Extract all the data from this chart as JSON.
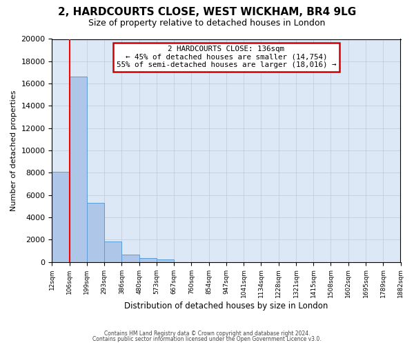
{
  "title": "2, HARDCOURTS CLOSE, WEST WICKHAM, BR4 9LG",
  "subtitle": "Size of property relative to detached houses in London",
  "xlabel": "Distribution of detached houses by size in London",
  "ylabel": "Number of detached properties",
  "bin_labels": [
    "12sqm",
    "106sqm",
    "199sqm",
    "293sqm",
    "386sqm",
    "480sqm",
    "573sqm",
    "667sqm",
    "760sqm",
    "854sqm",
    "947sqm",
    "1041sqm",
    "1134sqm",
    "1228sqm",
    "1321sqm",
    "1415sqm",
    "1508sqm",
    "1602sqm",
    "1695sqm",
    "1789sqm",
    "1882sqm"
  ],
  "bar_heights": [
    8100,
    16600,
    5300,
    1820,
    680,
    330,
    200,
    0,
    0,
    0,
    0,
    0,
    0,
    0,
    0,
    0,
    0,
    0,
    0,
    0
  ],
  "bar_color": "#aec6e8",
  "bar_edge_color": "#5b9bd5",
  "red_line_x": 1.0,
  "ylim": [
    0,
    20000
  ],
  "yticks": [
    0,
    2000,
    4000,
    6000,
    8000,
    10000,
    12000,
    14000,
    16000,
    18000,
    20000
  ],
  "annotation_title": "2 HARDCOURTS CLOSE: 136sqm",
  "annotation_line1": "← 45% of detached houses are smaller (14,754)",
  "annotation_line2": "55% of semi-detached houses are larger (18,016) →",
  "annotation_box_color": "#ffffff",
  "annotation_box_edge": "#cc0000",
  "footer1": "Contains HM Land Registry data © Crown copyright and database right 2024.",
  "footer2": "Contains public sector information licensed under the Open Government Licence v3.0.",
  "background_color": "#ffffff",
  "axes_bg_color": "#dce8f5",
  "grid_color": "#c0c8d8"
}
